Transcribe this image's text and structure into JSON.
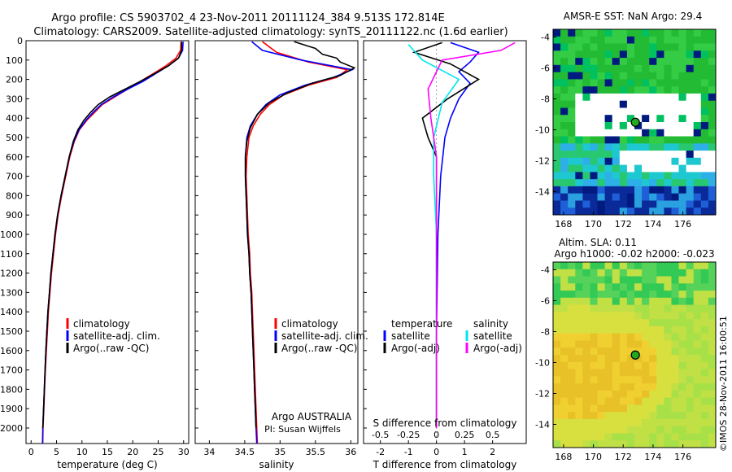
{
  "header": {
    "line1": "Argo profile: CS 5903702_4 23-Nov-2011 20111124_384 9.513S 172.814E",
    "line2": "Climatology: CARS2009. Satellite-adjusted climatology: synTS_20111122.nc (1.6d earlier)"
  },
  "colors": {
    "climatology": "#ff0000",
    "satellite": "#0000ff",
    "argo": "#000000",
    "sat_salinity": "#00e5ee",
    "argo_salinity": "#ff00ff"
  },
  "chart_data": [
    {
      "type": "line",
      "panel": "temperature",
      "xlabel": "temperature (deg C)",
      "xlim": [
        -1,
        31
      ],
      "xticks": [
        0,
        5,
        10,
        15,
        20,
        25,
        30
      ],
      "ylim": [
        2080,
        0
      ],
      "yticks": [
        0,
        100,
        200,
        300,
        400,
        500,
        600,
        700,
        800,
        900,
        1000,
        1100,
        1200,
        1300,
        1400,
        1500,
        1600,
        1700,
        1800,
        1900,
        2000
      ],
      "legend": [
        "climatology",
        "satellite-adj. clim.",
        "Argo(..raw -QC)"
      ],
      "series": [
        {
          "name": "climatology",
          "color": "#ff0000",
          "points": [
            [
              29.5,
              5
            ],
            [
              29.4,
              50
            ],
            [
              28.5,
              90
            ],
            [
              26.5,
              130
            ],
            [
              24,
              170
            ],
            [
              21.5,
              210
            ],
            [
              19,
              250
            ],
            [
              16.5,
              290
            ],
            [
              14,
              330
            ],
            [
              12.5,
              370
            ],
            [
              11,
              410
            ],
            [
              9.5,
              460
            ],
            [
              8.5,
              520
            ],
            [
              7.6,
              600
            ],
            [
              6.8,
              700
            ],
            [
              6,
              800
            ],
            [
              5.3,
              900
            ],
            [
              4.8,
              1000
            ],
            [
              4.4,
              1100
            ],
            [
              4,
              1200
            ],
            [
              3.7,
              1300
            ],
            [
              3.4,
              1400
            ],
            [
              3.2,
              1500
            ],
            [
              3,
              1600
            ],
            [
              2.8,
              1700
            ],
            [
              2.65,
              1800
            ],
            [
              2.5,
              1900
            ],
            [
              2.35,
              2000
            ],
            [
              2.3,
              2080
            ]
          ]
        },
        {
          "name": "satellite-adj. clim.",
          "color": "#0000ff",
          "points": [
            [
              29.9,
              5
            ],
            [
              29.8,
              50
            ],
            [
              29,
              90
            ],
            [
              27,
              130
            ],
            [
              24.5,
              170
            ],
            [
              22,
              210
            ],
            [
              19,
              250
            ],
            [
              16.2,
              290
            ],
            [
              13.8,
              330
            ],
            [
              12.2,
              370
            ],
            [
              10.8,
              410
            ],
            [
              9.4,
              460
            ],
            [
              8.4,
              520
            ],
            [
              7.5,
              600
            ],
            [
              6.7,
              700
            ],
            [
              5.9,
              800
            ],
            [
              5.2,
              900
            ],
            [
              4.7,
              1000
            ],
            [
              4.3,
              1100
            ],
            [
              3.9,
              1200
            ],
            [
              3.6,
              1300
            ],
            [
              3.3,
              1400
            ],
            [
              3.1,
              1500
            ],
            [
              2.9,
              1600
            ],
            [
              2.75,
              1700
            ],
            [
              2.6,
              1800
            ],
            [
              2.45,
              1900
            ],
            [
              2.3,
              2000
            ],
            [
              2.25,
              2080
            ]
          ]
        },
        {
          "name": "Argo(..raw -QC)",
          "color": "#000000",
          "points": [
            [
              29.6,
              5
            ],
            [
              29.6,
              50
            ],
            [
              29,
              90
            ],
            [
              27,
              130
            ],
            [
              24.3,
              170
            ],
            [
              21.5,
              210
            ],
            [
              18.5,
              250
            ],
            [
              15.5,
              290
            ],
            [
              13.2,
              330
            ],
            [
              11.7,
              370
            ],
            [
              10.4,
              410
            ],
            [
              9.2,
              460
            ],
            [
              8.3,
              520
            ],
            [
              7.5,
              600
            ],
            [
              6.7,
              700
            ],
            [
              5.9,
              800
            ],
            [
              5.2,
              900
            ],
            [
              4.7,
              1000
            ],
            [
              4.3,
              1100
            ],
            [
              3.9,
              1200
            ],
            [
              3.6,
              1300
            ],
            [
              3.3,
              1400
            ],
            [
              3.1,
              1500
            ],
            [
              2.9,
              1600
            ],
            [
              2.75,
              1700
            ],
            [
              2.6,
              1800
            ],
            [
              2.45,
              1900
            ],
            [
              2.3,
              2000
            ]
          ]
        }
      ]
    },
    {
      "type": "line",
      "panel": "salinity",
      "xlabel": "salinity",
      "xlim": [
        33.8,
        36.1
      ],
      "xticks": [
        34,
        34.5,
        35,
        35.5,
        36
      ],
      "ylim": [
        2080,
        0
      ],
      "legend": [
        "climatology",
        "satellite-adj. clim.",
        "Argo(..raw -QC)"
      ],
      "annotations": [
        "Argo AUSTRALIA",
        "PI: Susan Wijffels"
      ],
      "series": [
        {
          "name": "climatology",
          "color": "#ff0000",
          "points": [
            [
              34.75,
              5
            ],
            [
              34.95,
              60
            ],
            [
              35.4,
              110
            ],
            [
              35.95,
              150
            ],
            [
              35.8,
              190
            ],
            [
              35.4,
              230
            ],
            [
              35.05,
              280
            ],
            [
              34.85,
              330
            ],
            [
              34.72,
              380
            ],
            [
              34.62,
              440
            ],
            [
              34.56,
              500
            ],
            [
              34.53,
              600
            ],
            [
              34.52,
              700
            ],
            [
              34.53,
              800
            ],
            [
              34.54,
              900
            ],
            [
              34.55,
              1000
            ],
            [
              34.57,
              1100
            ],
            [
              34.58,
              1200
            ],
            [
              34.6,
              1300
            ],
            [
              34.61,
              1400
            ],
            [
              34.62,
              1500
            ],
            [
              34.63,
              1600
            ],
            [
              34.64,
              1700
            ],
            [
              34.65,
              1800
            ],
            [
              34.66,
              1900
            ],
            [
              34.67,
              2000
            ],
            [
              34.68,
              2080
            ]
          ]
        },
        {
          "name": "satellite-adj. clim.",
          "color": "#0000ff",
          "points": [
            [
              34.6,
              5
            ],
            [
              34.75,
              50
            ],
            [
              35.3,
              100
            ],
            [
              36.02,
              150
            ],
            [
              35.75,
              190
            ],
            [
              35.35,
              230
            ],
            [
              35.0,
              280
            ],
            [
              34.8,
              330
            ],
            [
              34.68,
              380
            ],
            [
              34.58,
              440
            ],
            [
              34.53,
              500
            ],
            [
              34.51,
              600
            ],
            [
              34.51,
              700
            ],
            [
              34.52,
              800
            ],
            [
              34.53,
              900
            ],
            [
              34.54,
              1000
            ],
            [
              34.56,
              1100
            ],
            [
              34.57,
              1200
            ],
            [
              34.59,
              1300
            ],
            [
              34.6,
              1400
            ],
            [
              34.61,
              1500
            ],
            [
              34.62,
              1600
            ],
            [
              34.63,
              1700
            ],
            [
              34.64,
              1800
            ],
            [
              34.65,
              1900
            ],
            [
              34.66,
              2000
            ],
            [
              34.67,
              2080
            ]
          ]
        },
        {
          "name": "Argo(..raw -QC)",
          "color": "#000000",
          "points": [
            [
              35.2,
              5
            ],
            [
              35.5,
              40
            ],
            [
              35.6,
              70
            ],
            [
              35.8,
              90
            ],
            [
              35.85,
              110
            ],
            [
              36.05,
              140
            ],
            [
              35.85,
              180
            ],
            [
              35.45,
              220
            ],
            [
              35.1,
              270
            ],
            [
              34.85,
              320
            ],
            [
              34.68,
              380
            ],
            [
              34.58,
              450
            ],
            [
              34.53,
              520
            ],
            [
              34.51,
              600
            ],
            [
              34.51,
              700
            ],
            [
              34.52,
              800
            ],
            [
              34.53,
              900
            ],
            [
              34.54,
              1000
            ],
            [
              34.56,
              1100
            ],
            [
              34.57,
              1200
            ],
            [
              34.59,
              1300
            ],
            [
              34.6,
              1400
            ],
            [
              34.61,
              1500
            ],
            [
              34.62,
              1600
            ],
            [
              34.63,
              1700
            ],
            [
              34.64,
              1800
            ],
            [
              34.65,
              1900
            ],
            [
              34.66,
              2000
            ]
          ]
        }
      ]
    },
    {
      "type": "line",
      "panel": "difference",
      "xlabel_bottom": "T difference from climatology",
      "xlabel_top": "S difference from climatology",
      "xlim_T": [
        -2.6,
        3.2
      ],
      "xticks_T": [
        -2,
        -1,
        0,
        1,
        2
      ],
      "xticks_S": [
        -0.5,
        -0.25,
        0,
        0.25,
        0.5
      ],
      "ylim": [
        2080,
        0
      ],
      "legend_temperature_title": "temperature",
      "legend_temperature": [
        "satellite",
        "Argo(-adj)"
      ],
      "legend_salinity_title": "salinity",
      "legend_salinity": [
        "satellite",
        "Argo(-adj)"
      ],
      "series": [
        {
          "name": "satellite",
          "kind": "temperature",
          "color": "#0000ff",
          "points": [
            [
              0.5,
              10
            ],
            [
              1.5,
              60
            ],
            [
              1.2,
              110
            ],
            [
              0.8,
              160
            ],
            [
              1.2,
              220
            ],
            [
              0.8,
              300
            ],
            [
              0.5,
              400
            ],
            [
              0.3,
              500
            ],
            [
              0.15,
              700
            ],
            [
              0.05,
              1000
            ],
            [
              0.0,
              1500
            ],
            [
              0.0,
              2000
            ]
          ]
        },
        {
          "name": "Argo(-adj)",
          "kind": "temperature",
          "color": "#000000",
          "points": [
            [
              0.2,
              10
            ],
            [
              -0.8,
              60
            ],
            [
              0.5,
              120
            ],
            [
              1.5,
              200
            ],
            [
              0.4,
              300
            ],
            [
              -0.5,
              400
            ],
            [
              -0.3,
              500
            ],
            [
              0.0,
              600
            ],
            [
              0.0,
              800
            ],
            [
              0.0,
              1000
            ],
            [
              0.0,
              1500
            ],
            [
              0.0,
              2000
            ]
          ]
        },
        {
          "name": "satellite",
          "kind": "salinity",
          "color": "#00e5ee",
          "points": [
            [
              -1.0,
              20
            ],
            [
              -0.5,
              100
            ],
            [
              0.8,
              200
            ],
            [
              0.2,
              320
            ],
            [
              -0.1,
              500
            ],
            [
              -0.1,
              700
            ],
            [
              0.0,
              1000
            ],
            [
              0.0,
              1500
            ],
            [
              0.0,
              2000
            ]
          ]
        },
        {
          "name": "Argo(-adj)",
          "kind": "salinity",
          "color": "#ff00ff",
          "points": [
            [
              2.8,
              10
            ],
            [
              2.3,
              50
            ],
            [
              0.2,
              100
            ],
            [
              -0.3,
              250
            ],
            [
              -0.2,
              400
            ],
            [
              0.0,
              600
            ],
            [
              0.0,
              1000
            ],
            [
              0.0,
              1500
            ],
            [
              0.0,
              2000
            ]
          ]
        }
      ]
    },
    {
      "type": "heatmap",
      "panel": "sst_map",
      "title": "AMSR-E SST: NaN Argo: 29.4",
      "xticks": [
        168,
        170,
        172,
        174,
        176
      ],
      "yticks": [
        -4,
        -6,
        -8,
        -10,
        -12,
        -14
      ],
      "xlim": [
        167.3,
        178.2
      ],
      "ylim": [
        -15.5,
        -3.5
      ],
      "marker": {
        "lon": 172.814,
        "lat": -9.513
      }
    },
    {
      "type": "heatmap",
      "panel": "sla_map",
      "title_line1": "Altim. SLA: 0.11",
      "title_line2": "Argo h1000: -0.02 h2000: -0.023",
      "xticks": [
        168,
        170,
        172,
        174,
        176
      ],
      "yticks": [
        -4,
        -6,
        -8,
        -10,
        -12,
        -14
      ],
      "xlim": [
        167.3,
        178.2
      ],
      "ylim": [
        -15.5,
        -3.5
      ],
      "marker": {
        "lon": 172.814,
        "lat": -9.513
      }
    }
  ],
  "footer": {
    "credit": "©IMOS 28-Nov-2011 16:00:51"
  }
}
